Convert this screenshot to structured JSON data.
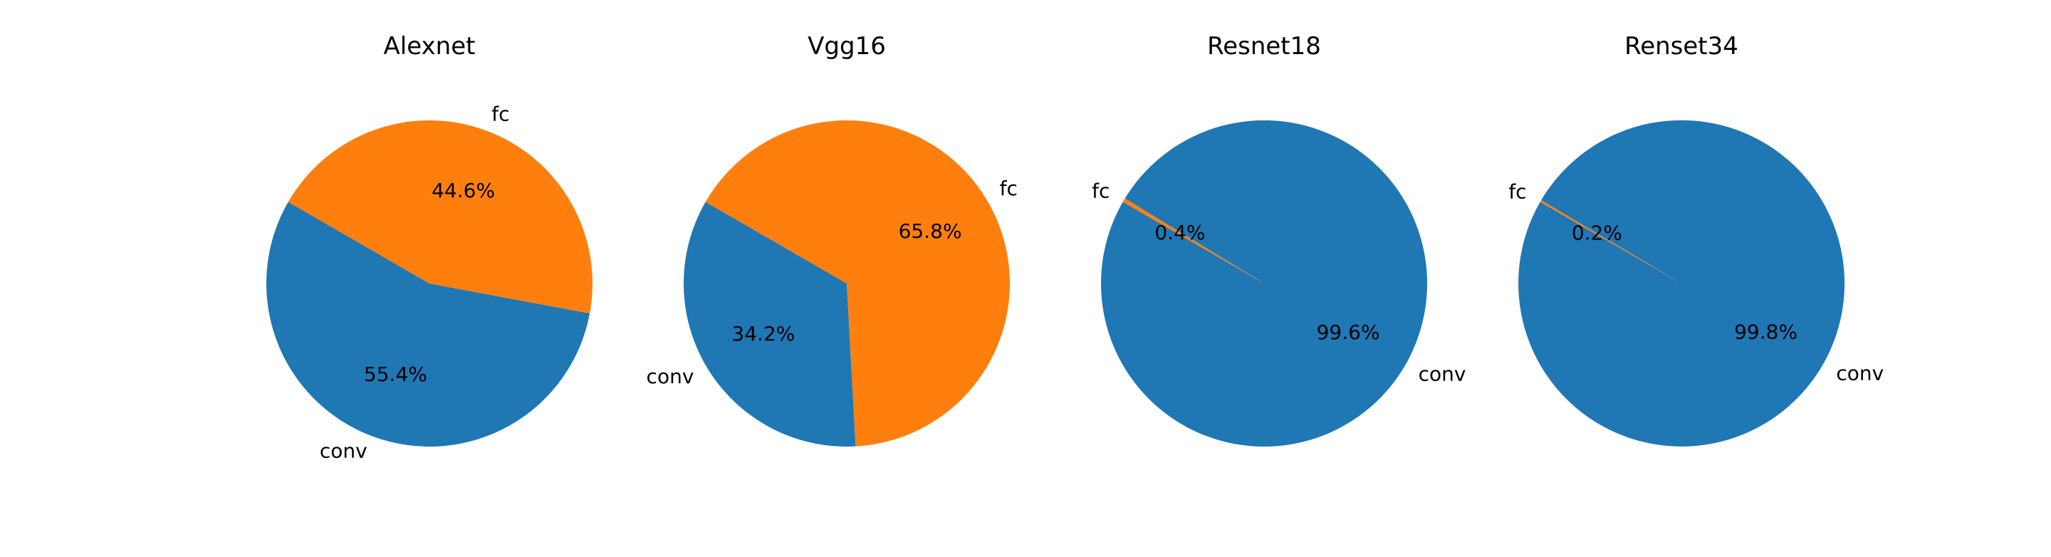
{
  "chart_data": [
    {
      "type": "pie",
      "title": "Alexnet",
      "slices": [
        {
          "label": "conv",
          "value": 55.4,
          "display": "55.4%",
          "color": "#1f77b4"
        },
        {
          "label": "fc",
          "value": 44.6,
          "display": "44.6%",
          "color": "#ff7f0e"
        }
      ]
    },
    {
      "type": "pie",
      "title": "Vgg16",
      "slices": [
        {
          "label": "conv",
          "value": 34.2,
          "display": "34.2%",
          "color": "#1f77b4"
        },
        {
          "label": "fc",
          "value": 65.8,
          "display": "65.8%",
          "color": "#ff7f0e"
        }
      ]
    },
    {
      "type": "pie",
      "title": "Resnet18",
      "slices": [
        {
          "label": "conv",
          "value": 99.6,
          "display": "99.6%",
          "color": "#1f77b4"
        },
        {
          "label": "fc",
          "value": 0.4,
          "display": "0.4%",
          "color": "#ff7f0e"
        }
      ]
    },
    {
      "type": "pie",
      "title": "Renset34",
      "slices": [
        {
          "label": "conv",
          "value": 99.8,
          "display": "99.8%",
          "color": "#1f77b4"
        },
        {
          "label": "fc",
          "value": 0.2,
          "display": "0.2%",
          "color": "#ff7f0e"
        }
      ]
    }
  ]
}
